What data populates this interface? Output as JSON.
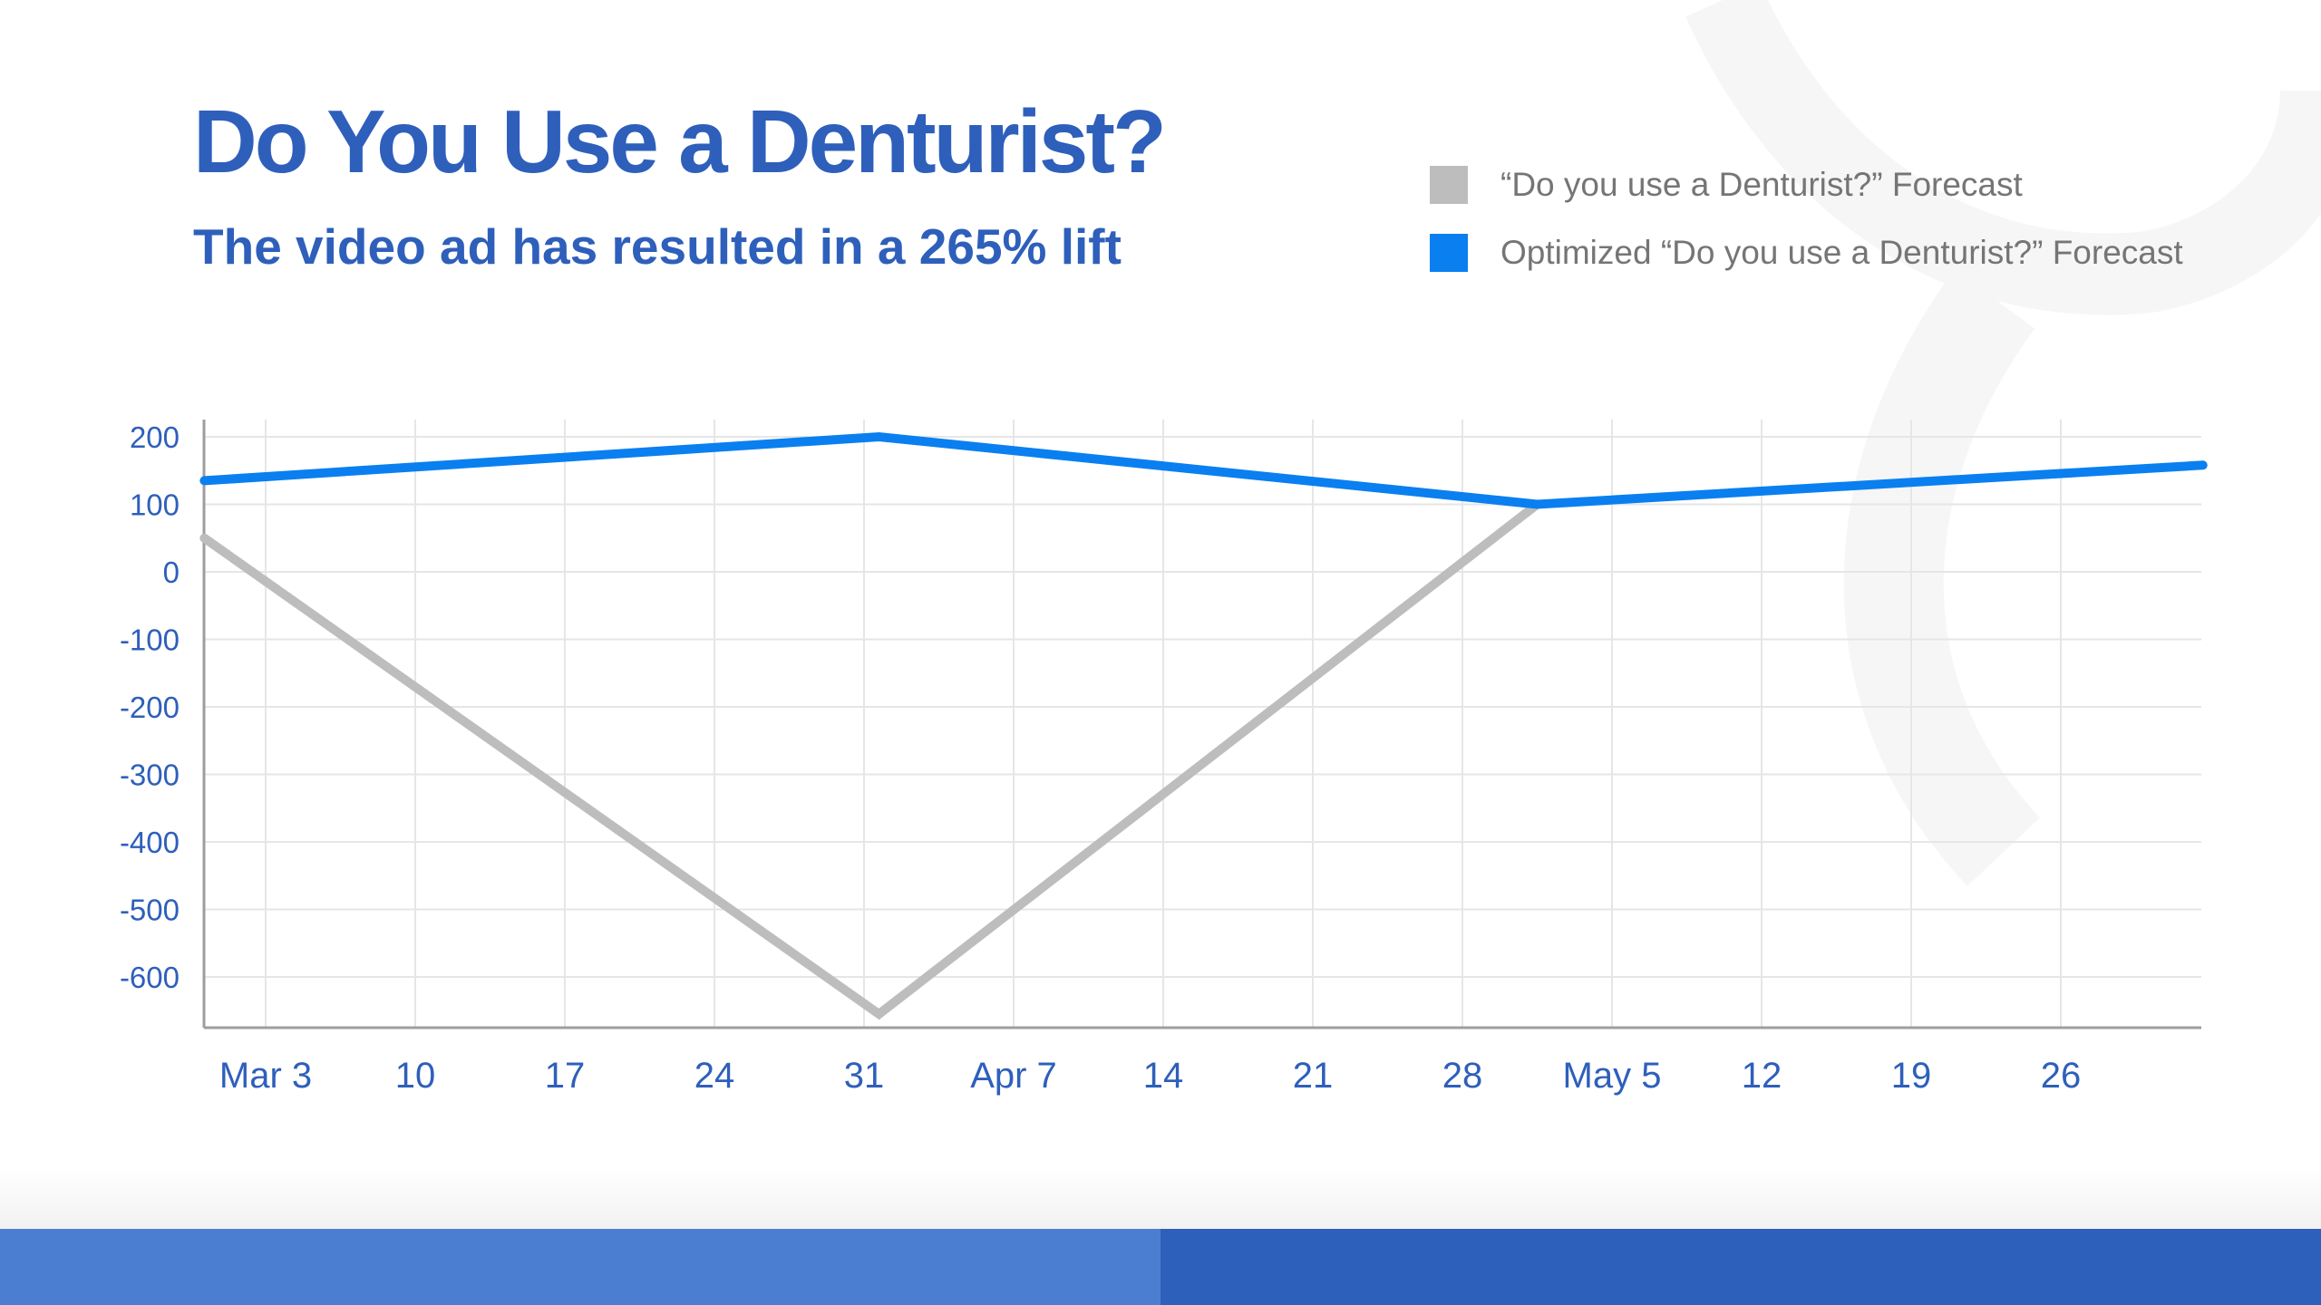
{
  "slide": {
    "title": "Do You Use a Denturist?",
    "subtitle": "The video ad has resulted in a 265% lift"
  },
  "colors": {
    "title": "#2e5fbb",
    "axis_text": "#2e5fbb",
    "series_forecast": "#bdbdbd",
    "series_optimized": "#0a7ff0",
    "grid": "#e6e6e6",
    "footer_left": "#4b7ed1",
    "footer_right": "#2c60ba"
  },
  "chart_data": {
    "type": "line",
    "title": "Do You Use a Denturist?",
    "xlabel": "",
    "ylabel": "",
    "x_tick_labels": [
      "Mar 3",
      "10",
      "17",
      "24",
      "31",
      "Apr 7",
      "14",
      "21",
      "28",
      "May 5",
      "12",
      "19",
      "26"
    ],
    "x_tick_weeks": [
      0,
      1,
      2,
      3,
      4,
      5,
      6,
      7,
      8,
      9,
      10,
      11,
      12
    ],
    "xlim": [
      -0.41,
      12.95
    ],
    "y_ticks": [
      200,
      100,
      0,
      -100,
      -200,
      -300,
      -400,
      -500,
      -600
    ],
    "ylim": [
      -680,
      200
    ],
    "grid": true,
    "legend_position": "top-right",
    "series": [
      {
        "name": "“Do you use a Denturist?” Forecast",
        "color": "#bdbdbd",
        "x_weeks": [
          -0.41,
          4.1,
          8.5
        ],
        "values": [
          50,
          -655,
          100
        ]
      },
      {
        "name": "Optimized “Do you use a Denturist?” Forecast",
        "color": "#0a7ff0",
        "x_weeks": [
          -0.41,
          4.1,
          8.5,
          12.95
        ],
        "values": [
          135,
          200,
          100,
          158
        ]
      }
    ]
  }
}
